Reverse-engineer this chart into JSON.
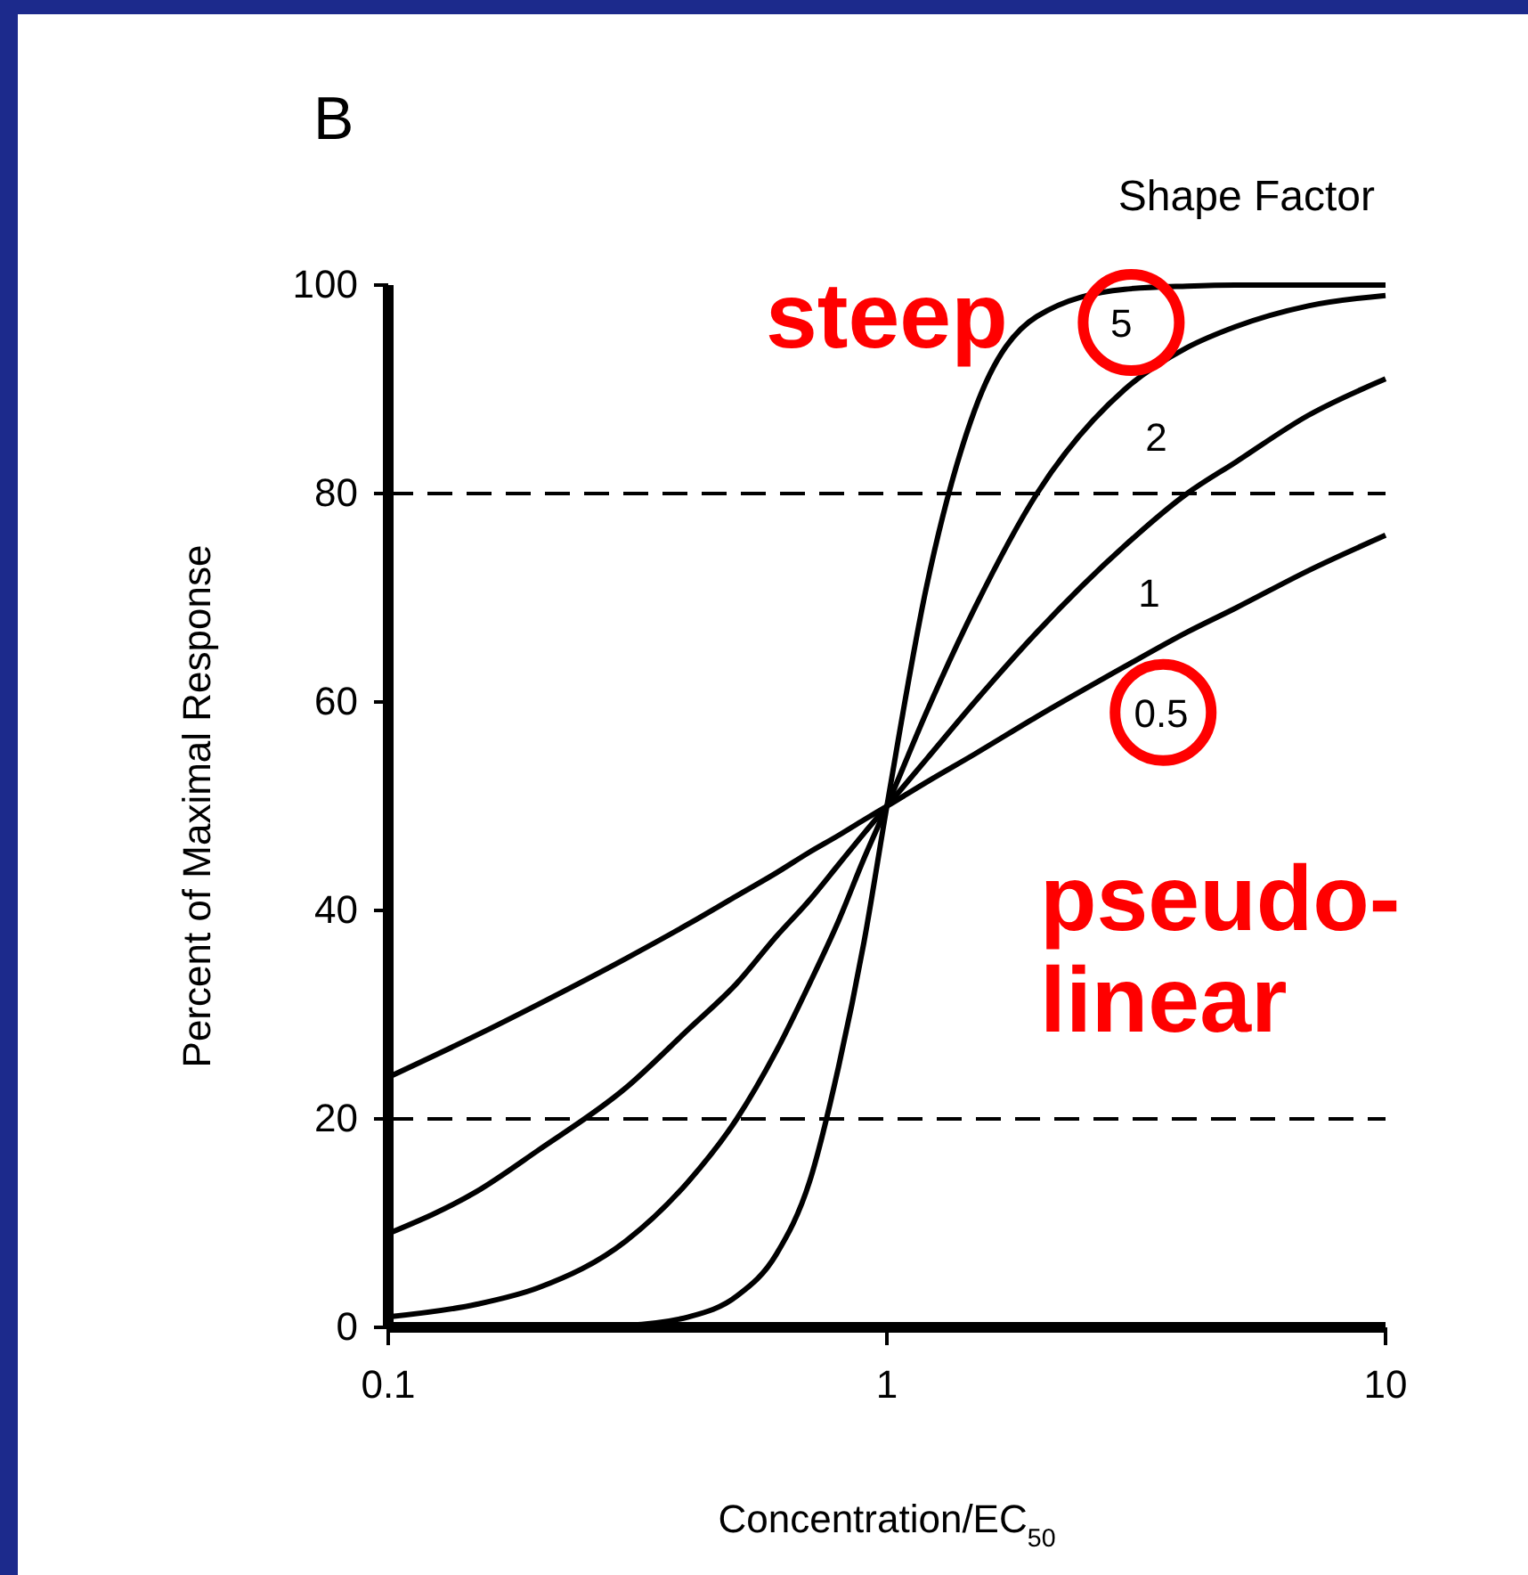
{
  "chart_data": {
    "type": "line",
    "title": "B",
    "xlabel": "Concentration/EC$_{50}$",
    "ylabel": "Percent of Maximal Response",
    "legend_title": "Shape Factor",
    "x": [
      0.1,
      0.15,
      0.2,
      0.3,
      0.4,
      0.5,
      0.6,
      0.7,
      0.8,
      0.9,
      1,
      1.2,
      1.5,
      2,
      3,
      4,
      5,
      7,
      10
    ],
    "series": [
      {
        "name": "5",
        "color": "#000000",
        "values": [
          0,
          0,
          0,
          0.2,
          1,
          3,
          7,
          14,
          25,
          37,
          50,
          71,
          88,
          97,
          99.6,
          99.9,
          100,
          100,
          100
        ]
      },
      {
        "name": "2",
        "color": "#000000",
        "values": [
          1,
          2.2,
          3.8,
          8.3,
          14,
          20,
          26.5,
          33,
          39,
          45,
          50,
          59,
          69,
          80,
          90,
          94,
          96,
          98,
          99
        ]
      },
      {
        "name": "1",
        "color": "#000000",
        "values": [
          9,
          13,
          17,
          23,
          28.6,
          33,
          37.5,
          41,
          44.4,
          47.4,
          50,
          54.5,
          60,
          66.7,
          75,
          80,
          83,
          87.5,
          91
        ]
      },
      {
        "name": "0.5",
        "color": "#000000",
        "values": [
          24,
          28,
          31,
          35.4,
          38.7,
          41.4,
          43.6,
          45.6,
          47.2,
          48.7,
          50,
          52.3,
          55,
          58.6,
          63.4,
          66.7,
          69,
          72.6,
          76
        ]
      }
    ],
    "log": "x",
    "xlim": [
      0.1,
      10
    ],
    "xticks": [
      0.1,
      1,
      10
    ],
    "ylim": [
      0,
      100
    ],
    "yticks": [
      0,
      20,
      40,
      60,
      80,
      100
    ],
    "grid": false,
    "line_style": "solid",
    "marker": "none",
    "ref_lines": [
      {
        "axis": "y",
        "value": 80,
        "line_style": "dashed"
      },
      {
        "axis": "y",
        "value": 20,
        "line_style": "dashed"
      }
    ],
    "annotations": [
      "steep",
      "pseudo-linear"
    ]
  }
}
